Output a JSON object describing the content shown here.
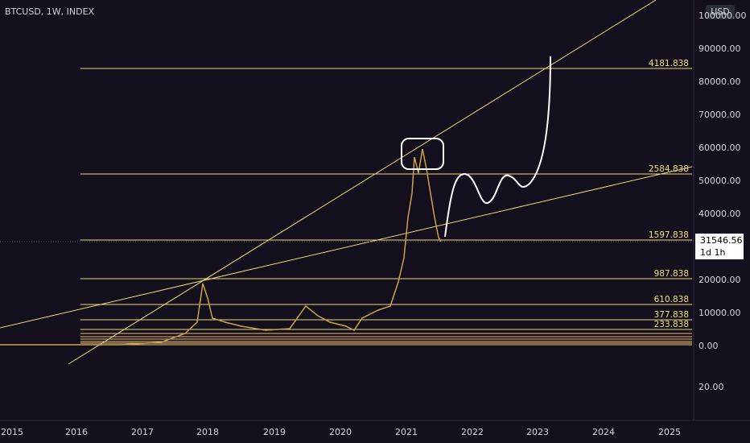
{
  "header": {
    "symbol": "BTCUSD, 1W, INDEX",
    "currency": "USD"
  },
  "price_axis": [
    "100000.00",
    "90000.00",
    "80000.00",
    "70000.00",
    "60000.00",
    "50000.00",
    "40000.00",
    "20000.00",
    "10000.00",
    "0.00",
    "20.00"
  ],
  "time_axis": [
    "2015",
    "2016",
    "2017",
    "2018",
    "2019",
    "2020",
    "2021",
    "2022",
    "2023",
    "2024",
    "2025"
  ],
  "levels": [
    "4181.838",
    "2584.838",
    "1597.838",
    "987.838",
    "610.838",
    "377.838",
    "233.838"
  ],
  "price_tag": {
    "price": "31546.56",
    "countdown": "1d 1h"
  }
}
